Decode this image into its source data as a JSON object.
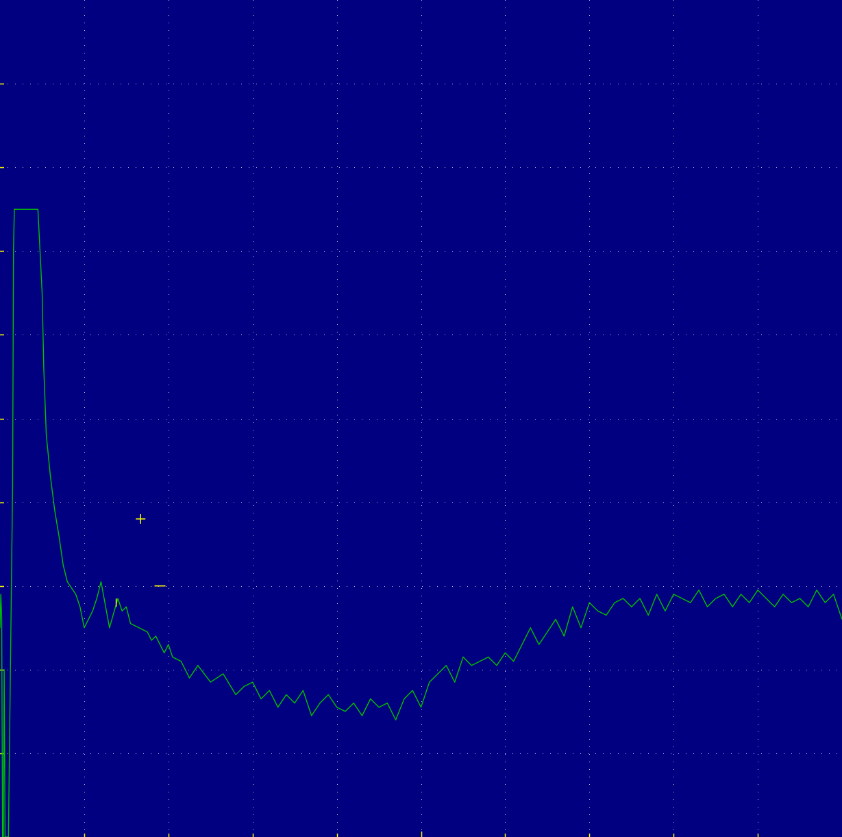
{
  "colors": {
    "background": "#000080",
    "trace": "#00c000",
    "grid": "#c8c8d8",
    "ticks": "#ffff00",
    "markers": "#ffff00"
  },
  "chart_data": {
    "type": "line",
    "title": "",
    "xlabel": "",
    "ylabel": "",
    "xlim": [
      0,
      10
    ],
    "ylim": [
      0,
      10
    ],
    "grid": true,
    "x_divisions": 10,
    "y_divisions": 10,
    "series": [
      {
        "x": [
          0.0,
          0.01,
          0.02,
          0.03,
          0.04,
          0.05,
          0.06,
          0.1,
          0.15,
          0.16,
          0.17,
          0.18,
          0.2,
          0.22,
          0.3,
          0.45,
          0.47,
          0.5,
          0.52,
          0.55,
          0.6,
          0.65,
          0.7,
          0.75,
          0.8,
          0.9,
          0.95,
          1.0,
          1.1,
          1.15,
          1.2,
          1.3,
          1.4,
          1.45,
          1.5,
          1.55,
          1.65,
          1.75,
          1.8,
          1.85,
          1.95,
          2.0,
          2.05,
          2.15,
          2.25,
          2.35,
          2.5,
          2.65,
          2.8,
          2.9,
          3.0,
          3.1,
          3.2,
          3.3,
          3.4,
          3.5,
          3.6,
          3.7,
          3.8,
          3.9,
          4.0,
          4.1,
          4.2,
          4.3,
          4.4,
          4.5,
          4.6,
          4.7,
          4.8,
          4.9,
          5.0,
          5.1,
          5.2,
          5.3,
          5.4,
          5.5,
          5.6,
          5.7,
          5.8,
          5.9,
          6.0,
          6.1,
          6.2,
          6.3,
          6.4,
          6.5,
          6.6,
          6.7,
          6.8,
          6.9,
          7.0,
          7.1,
          7.2,
          7.3,
          7.4,
          7.5,
          7.6,
          7.7,
          7.8,
          7.9,
          8.0,
          8.1,
          8.2,
          8.3,
          8.4,
          8.5,
          8.6,
          8.7,
          8.8,
          8.9,
          9.0,
          9.1,
          9.2,
          9.3,
          9.4,
          9.5,
          9.6,
          9.7,
          9.8,
          9.9,
          10.0
        ],
        "y": [
          2.5,
          2.9,
          2.6,
          0.0,
          0.0,
          2.0,
          0.0,
          0.0,
          4.2,
          7.0,
          7.5,
          7.5,
          7.5,
          7.5,
          7.5,
          7.5,
          7.1,
          6.5,
          5.6,
          4.8,
          4.3,
          3.9,
          3.6,
          3.25,
          3.05,
          2.9,
          2.75,
          2.5,
          2.7,
          2.85,
          3.05,
          2.5,
          2.85,
          2.7,
          2.75,
          2.55,
          2.5,
          2.45,
          2.35,
          2.4,
          2.2,
          2.3,
          2.15,
          2.1,
          1.9,
          2.05,
          1.85,
          1.95,
          1.7,
          1.8,
          1.85,
          1.65,
          1.75,
          1.55,
          1.7,
          1.6,
          1.75,
          1.45,
          1.6,
          1.7,
          1.55,
          1.5,
          1.6,
          1.45,
          1.65,
          1.55,
          1.6,
          1.4,
          1.65,
          1.75,
          1.55,
          1.85,
          1.95,
          2.05,
          1.85,
          2.15,
          2.05,
          2.1,
          2.15,
          2.05,
          2.2,
          2.1,
          2.3,
          2.5,
          2.3,
          2.45,
          2.6,
          2.4,
          2.75,
          2.5,
          2.8,
          2.7,
          2.65,
          2.8,
          2.85,
          2.75,
          2.85,
          2.65,
          2.9,
          2.7,
          2.9,
          2.85,
          2.8,
          2.95,
          2.75,
          2.85,
          2.9,
          2.75,
          2.9,
          2.8,
          2.95,
          2.85,
          2.75,
          2.9,
          2.8,
          2.85,
          2.75,
          2.95,
          2.8,
          2.9,
          2.6
        ]
      }
    ],
    "markers": [
      {
        "x": 1.38,
        "y": 2.8,
        "shape": "tick"
      },
      {
        "x": 1.67,
        "y": 3.8,
        "shape": "cross"
      },
      {
        "x": 1.9,
        "y": 3.0,
        "shape": "dash"
      }
    ]
  }
}
